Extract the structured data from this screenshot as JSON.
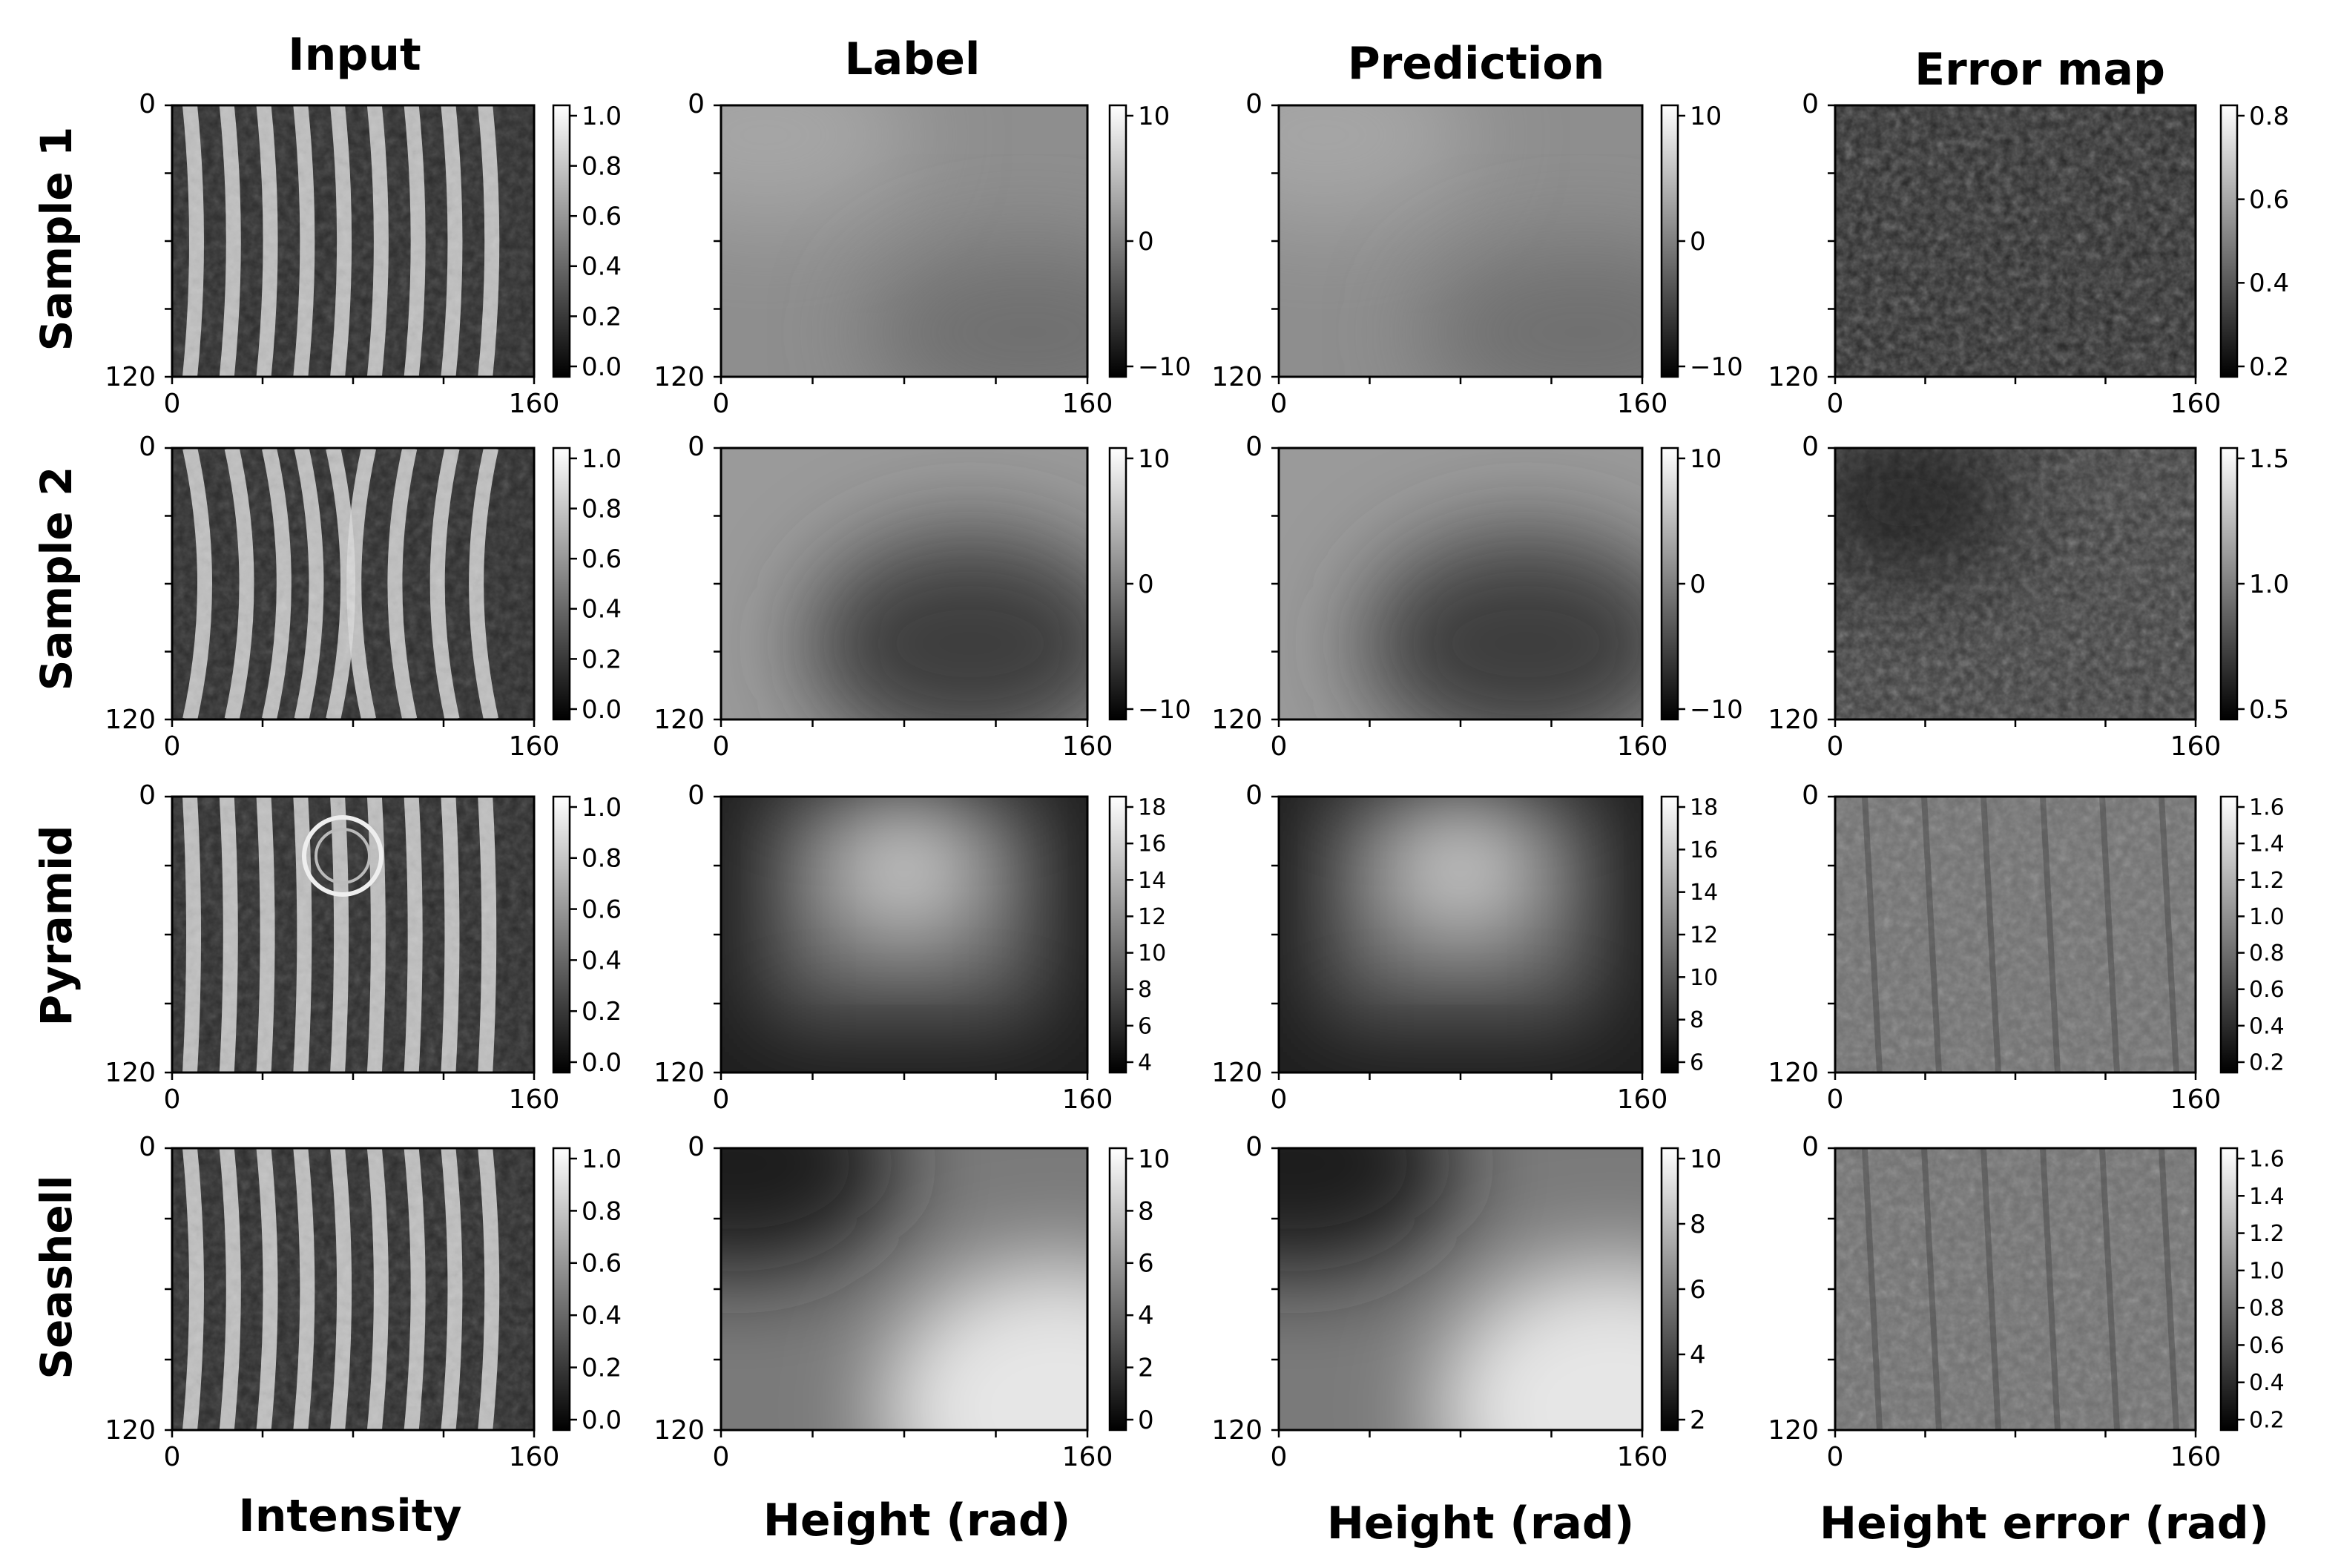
{
  "columns": [
    {
      "key": "input",
      "title": "Input",
      "xlabel": "Intensity"
    },
    {
      "key": "label",
      "title": "Label",
      "xlabel": "Height (rad)"
    },
    {
      "key": "prediction",
      "title": "Prediction",
      "xlabel": "Height (rad)"
    },
    {
      "key": "error",
      "title": "Error map",
      "xlabel": "Height error (rad)"
    }
  ],
  "rows": [
    {
      "key": "sample1",
      "label": "Sample 1"
    },
    {
      "key": "sample2",
      "label": "Sample 2"
    },
    {
      "key": "pyramid",
      "label": "Pyramid"
    },
    {
      "key": "seashell",
      "label": "Seashell"
    }
  ],
  "axes": {
    "x_ticks": [
      0,
      160
    ],
    "y_ticks": [
      0,
      120
    ]
  },
  "colorbars": {
    "input": [
      "1.0",
      "0.8",
      "0.6",
      "0.4",
      "0.2",
      "0.0"
    ],
    "sample1": {
      "label": [
        "10",
        "0",
        "−10"
      ],
      "prediction": [
        "10",
        "0",
        "−10"
      ],
      "error": [
        "0.8",
        "0.6",
        "0.4",
        "0.2"
      ]
    },
    "sample2": {
      "label": [
        "10",
        "0",
        "−10"
      ],
      "prediction": [
        "10",
        "0",
        "−10"
      ],
      "error": [
        "1.5",
        "1.0",
        "0.5"
      ]
    },
    "pyramid": {
      "label": [
        "18",
        "16",
        "14",
        "12",
        "10",
        "8",
        "6",
        "4"
      ],
      "prediction": [
        "18",
        "16",
        "14",
        "12",
        "10",
        "8",
        "6"
      ],
      "error": [
        "1.6",
        "1.4",
        "1.2",
        "1.0",
        "0.8",
        "0.6",
        "0.4",
        "0.2"
      ]
    },
    "seashell": {
      "label": [
        "10",
        "8",
        "6",
        "4",
        "2",
        "0"
      ],
      "prediction": [
        "10",
        "8",
        "6",
        "4",
        "2"
      ],
      "error": [
        "1.6",
        "1.4",
        "1.2",
        "1.0",
        "0.8",
        "0.6",
        "0.4",
        "0.2"
      ]
    }
  }
}
